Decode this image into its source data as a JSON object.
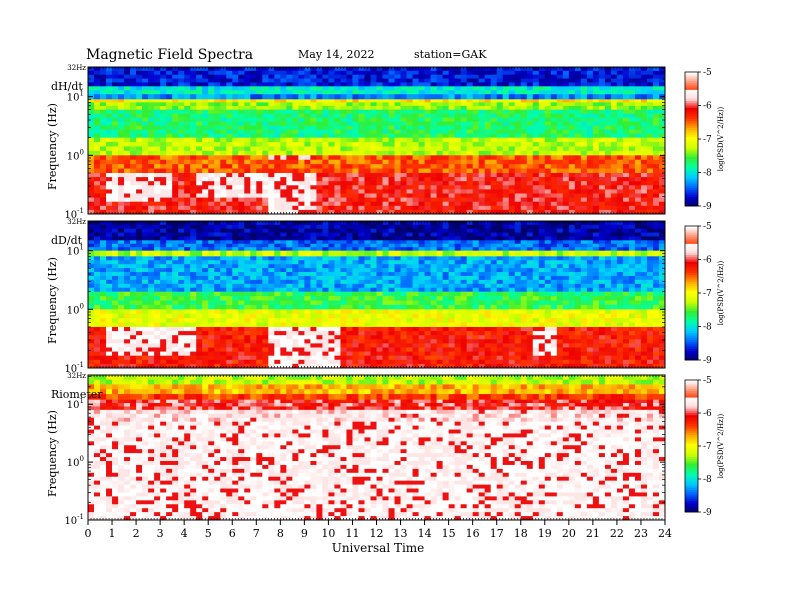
{
  "header": {
    "title": "Magnetic  Field  Spectra",
    "date": "May 14, 2022",
    "station": "station=GAK"
  },
  "chart_data": [
    {
      "type": "heatmap",
      "panel_label": "dH/dt",
      "ylabel": "Frequency  (Hz)",
      "top_label": "32Hz",
      "yscale": "log",
      "ylim": [
        0.1,
        32
      ],
      "y_ticks": [
        {
          "base": "10",
          "exp": "1"
        },
        {
          "base": "10",
          "exp": "0"
        },
        {
          "base": "10",
          "exp": "-1"
        }
      ],
      "colorbar_label": "log(PSD(V^2/Hz))",
      "colorbar_ticks": [
        "-5",
        "-6",
        "-7",
        "-8",
        "-9"
      ],
      "zlim": [
        -9,
        -5
      ],
      "bands": [
        {
          "f": [
            15,
            32
          ],
          "level": -8.6
        },
        {
          "f": [
            11,
            15
          ],
          "level": -7.8
        },
        {
          "f": [
            9,
            11
          ],
          "level": -8.2
        },
        {
          "f": [
            8,
            9
          ],
          "level": -6.6
        },
        {
          "f": [
            6,
            8
          ],
          "level": -7.1
        },
        {
          "f": [
            2,
            6
          ],
          "level": -7.5
        },
        {
          "f": [
            1,
            2
          ],
          "level": -7.0
        },
        {
          "f": [
            0.5,
            1
          ],
          "level": -6.1
        },
        {
          "f": [
            0.1,
            0.5
          ],
          "level": -5.7
        }
      ],
      "saturated_regions": [
        {
          "t": [
            0.8,
            3.5
          ],
          "f": [
            0.1,
            0.3
          ]
        },
        {
          "t": [
            4.5,
            7.5
          ],
          "f": [
            0.1,
            0.25
          ]
        },
        {
          "t": [
            7.5,
            9.5
          ],
          "f": [
            0.1,
            0.6
          ]
        }
      ]
    },
    {
      "type": "heatmap",
      "panel_label": "dD/dt",
      "ylabel": "Frequency  (Hz)",
      "top_label": "32Hz",
      "yscale": "log",
      "ylim": [
        0.1,
        32
      ],
      "y_ticks": [
        {
          "base": "10",
          "exp": "1"
        },
        {
          "base": "10",
          "exp": "0"
        },
        {
          "base": "10",
          "exp": "-1"
        }
      ],
      "colorbar_label": "log(PSD(V^2/Hz))",
      "colorbar_ticks": [
        "-5",
        "-6",
        "-7",
        "-8",
        "-9"
      ],
      "zlim": [
        -9,
        -5
      ],
      "bands": [
        {
          "f": [
            15,
            32
          ],
          "level": -8.8
        },
        {
          "f": [
            10,
            15
          ],
          "level": -8.3
        },
        {
          "f": [
            8,
            10
          ],
          "level": -7.0
        },
        {
          "f": [
            2,
            8
          ],
          "level": -8.1
        },
        {
          "f": [
            1,
            2
          ],
          "level": -7.4
        },
        {
          "f": [
            0.5,
            1
          ],
          "level": -6.8
        },
        {
          "f": [
            0.1,
            0.5
          ],
          "level": -5.8
        }
      ],
      "saturated_regions": [
        {
          "t": [
            0.8,
            4.5
          ],
          "f": [
            0.1,
            0.3
          ]
        },
        {
          "t": [
            7.5,
            10.5
          ],
          "f": [
            0.1,
            0.5
          ]
        },
        {
          "t": [
            18.5,
            19.5
          ],
          "f": [
            0.1,
            0.3
          ]
        }
      ]
    },
    {
      "type": "heatmap",
      "panel_label": "Riometer",
      "ylabel": "Frequency  (Hz)",
      "top_label": "32Hz",
      "yscale": "log",
      "ylim": [
        0.1,
        32
      ],
      "y_ticks": [
        {
          "base": "10",
          "exp": "1"
        },
        {
          "base": "10",
          "exp": "0"
        },
        {
          "base": "10",
          "exp": "-1"
        }
      ],
      "colorbar_label": "log(PSD(V^2/Hz))",
      "colorbar_ticks": [
        "-5",
        "-6",
        "-7",
        "-8",
        "-9"
      ],
      "zlim": [
        -9,
        -5
      ],
      "bands": [
        {
          "f": [
            22,
            32
          ],
          "level": -7.0
        },
        {
          "f": [
            15,
            22
          ],
          "level": -6.4
        },
        {
          "f": [
            12,
            15
          ],
          "level": -6.0
        },
        {
          "f": [
            8,
            12
          ],
          "level": -5.6
        },
        {
          "f": [
            5,
            8
          ],
          "level": -5.2
        },
        {
          "f": [
            0.1,
            5
          ],
          "level": -4.9
        }
      ],
      "saturated_regions": []
    }
  ],
  "x_axis": {
    "label": "Universal Time",
    "ticks": [
      "0",
      "1",
      "2",
      "3",
      "4",
      "5",
      "6",
      "7",
      "8",
      "9",
      "10",
      "11",
      "12",
      "13",
      "14",
      "15",
      "16",
      "17",
      "18",
      "19",
      "20",
      "21",
      "22",
      "23",
      "24"
    ],
    "xlim": [
      0,
      24
    ]
  },
  "colors": {
    "colormap": [
      "#000066",
      "#0000cc",
      "#0066ff",
      "#00ccff",
      "#00ffaa",
      "#33ee33",
      "#ccff00",
      "#ffff00",
      "#ffaa00",
      "#ff3300",
      "#ee0000",
      "#ffdddd",
      "#ffffff"
    ]
  }
}
